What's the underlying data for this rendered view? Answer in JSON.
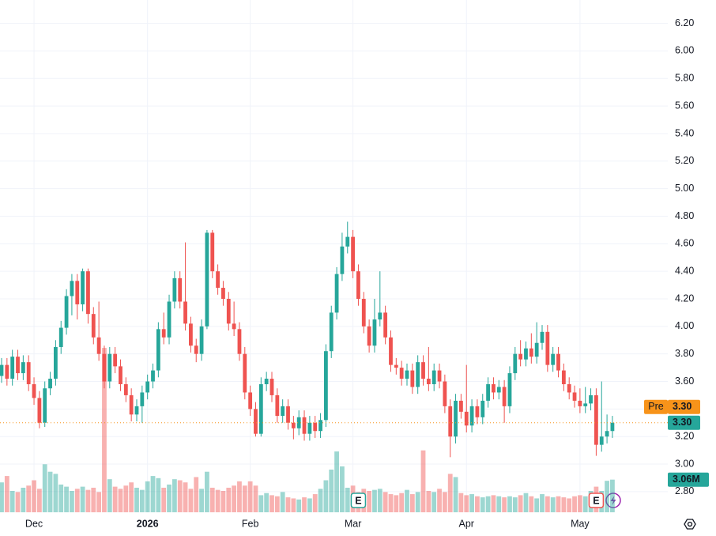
{
  "chart_data": {
    "type": "candlestick",
    "categories": [
      null,
      null,
      null,
      null,
      null,
      null,
      "Dec",
      null,
      null,
      null,
      null,
      null,
      null,
      null,
      null,
      null,
      null,
      null,
      null,
      null,
      null,
      null,
      null,
      null,
      null,
      null,
      null,
      "2026",
      null,
      null,
      null,
      null,
      null,
      null,
      null,
      null,
      null,
      null,
      null,
      null,
      null,
      null,
      null,
      null,
      null,
      null,
      "Feb",
      null,
      null,
      null,
      null,
      null,
      null,
      null,
      null,
      null,
      null,
      null,
      null,
      null,
      null,
      null,
      null,
      null,
      null,
      "Mar",
      null,
      null,
      null,
      null,
      null,
      null,
      null,
      null,
      null,
      null,
      null,
      null,
      null,
      null,
      null,
      null,
      null,
      null,
      null,
      null,
      "Apr",
      null,
      null,
      null,
      null,
      null,
      null,
      null,
      null,
      null,
      null,
      null,
      null,
      null,
      null,
      null,
      null,
      null,
      null,
      null,
      null,
      "May",
      null,
      null,
      null,
      null,
      null,
      null
    ],
    "open": [
      3.64,
      3.72,
      3.62,
      3.78,
      3.66,
      3.74,
      3.58,
      3.48,
      3.3,
      3.55,
      3.62,
      3.85,
      3.99,
      4.22,
      4.33,
      4.16,
      4.4,
      4.09,
      3.92,
      3.8,
      3.6,
      3.8,
      3.71,
      3.58,
      3.5,
      3.36,
      3.42,
      3.52,
      3.6,
      3.68,
      3.98,
      3.92,
      4.18,
      4.35,
      4.18,
      4.02,
      3.86,
      3.8,
      4.0,
      4.68,
      4.4,
      4.28,
      4.2,
      4.02,
      3.98,
      3.8,
      3.52,
      3.4,
      3.22,
      3.58,
      3.62,
      3.5,
      3.35,
      3.42,
      3.3,
      3.26,
      3.34,
      3.22,
      3.3,
      3.24,
      3.32,
      3.82,
      4.1,
      4.38,
      4.58,
      4.65,
      4.4,
      4.2,
      4.0,
      3.86,
      4.05,
      4.1,
      3.92,
      3.72,
      3.7,
      3.62,
      3.68,
      3.56,
      3.74,
      3.62,
      3.58,
      3.68,
      3.6,
      3.42,
      3.2,
      3.46,
      3.38,
      3.28,
      3.42,
      3.34,
      3.46,
      3.58,
      3.52,
      3.56,
      3.42,
      3.66,
      3.8,
      3.76,
      3.84,
      3.78,
      3.88,
      3.96,
      3.72,
      3.8,
      3.68,
      3.58,
      3.52,
      3.46,
      3.42,
      3.44,
      3.5,
      3.14,
      3.2,
      3.24
    ],
    "high": [
      3.77,
      3.77,
      3.83,
      3.83,
      3.79,
      3.79,
      3.63,
      3.53,
      3.6,
      3.67,
      3.9,
      4.04,
      4.27,
      4.38,
      4.38,
      4.42,
      4.42,
      4.14,
      4.18,
      3.86,
      3.85,
      3.85,
      3.76,
      3.63,
      3.55,
      3.47,
      3.57,
      3.65,
      3.73,
      4.03,
      4.1,
      4.23,
      4.4,
      4.4,
      4.61,
      4.07,
      3.91,
      4.05,
      4.7,
      4.7,
      4.45,
      4.33,
      4.25,
      4.18,
      4.03,
      3.85,
      3.57,
      3.45,
      3.63,
      3.67,
      3.67,
      3.55,
      3.47,
      3.47,
      3.35,
      3.39,
      3.39,
      3.35,
      3.35,
      3.37,
      3.87,
      4.15,
      4.43,
      4.68,
      4.76,
      4.7,
      4.45,
      4.25,
      4.05,
      4.2,
      4.4,
      4.15,
      3.97,
      3.77,
      3.75,
      3.73,
      3.73,
      3.79,
      3.79,
      3.85,
      3.73,
      3.73,
      3.65,
      3.47,
      3.51,
      3.51,
      3.72,
      3.47,
      3.47,
      3.51,
      3.63,
      3.63,
      3.61,
      3.61,
      3.71,
      3.85,
      3.9,
      3.89,
      3.95,
      4.03,
      4.01,
      4.01,
      3.85,
      3.85,
      3.73,
      3.63,
      3.57,
      3.55,
      3.56,
      3.55,
      3.55,
      3.6,
      3.36,
      3.35
    ],
    "low": [
      3.59,
      3.57,
      3.57,
      3.61,
      3.61,
      3.53,
      3.43,
      3.26,
      3.27,
      3.5,
      3.57,
      3.8,
      3.94,
      4.08,
      4.05,
      4.11,
      4.02,
      3.87,
      3.75,
      3.55,
      3.55,
      3.66,
      3.53,
      3.45,
      3.31,
      3.31,
      3.3,
      3.47,
      3.55,
      3.63,
      3.87,
      3.87,
      4.13,
      4.13,
      3.97,
      3.81,
      3.74,
      3.75,
      3.98,
      4.35,
      4.23,
      4.15,
      3.97,
      3.93,
      3.75,
      3.47,
      3.35,
      3.2,
      3.2,
      3.53,
      3.45,
      3.3,
      3.3,
      3.25,
      3.18,
      3.21,
      3.17,
      3.17,
      3.19,
      3.19,
      3.27,
      3.77,
      4.05,
      4.33,
      4.53,
      4.35,
      4.15,
      3.95,
      3.81,
      3.81,
      4.0,
      3.87,
      3.67,
      3.65,
      3.57,
      3.57,
      3.51,
      3.51,
      3.57,
      3.53,
      3.53,
      3.55,
      3.37,
      3.05,
      3.15,
      3.33,
      3.23,
      3.23,
      3.29,
      3.29,
      3.41,
      3.47,
      3.47,
      3.3,
      3.37,
      3.61,
      3.71,
      3.71,
      3.73,
      3.73,
      3.83,
      3.67,
      3.67,
      3.63,
      3.53,
      3.47,
      3.41,
      3.37,
      3.37,
      3.39,
      3.06,
      3.09,
      3.15,
      3.19
    ],
    "close": [
      3.72,
      3.62,
      3.78,
      3.66,
      3.74,
      3.58,
      3.48,
      3.3,
      3.55,
      3.62,
      3.85,
      3.99,
      4.22,
      4.33,
      4.16,
      4.4,
      4.09,
      3.92,
      3.8,
      3.6,
      3.8,
      3.71,
      3.58,
      3.5,
      3.36,
      3.42,
      3.52,
      3.6,
      3.68,
      3.98,
      3.92,
      4.18,
      4.35,
      4.18,
      4.02,
      3.86,
      3.8,
      4.0,
      4.68,
      4.4,
      4.28,
      4.2,
      4.02,
      3.98,
      3.8,
      3.52,
      3.4,
      3.22,
      3.58,
      3.62,
      3.5,
      3.35,
      3.42,
      3.3,
      3.26,
      3.34,
      3.22,
      3.3,
      3.24,
      3.32,
      3.82,
      4.1,
      4.38,
      4.58,
      4.65,
      4.4,
      4.2,
      4.0,
      3.86,
      4.05,
      4.1,
      3.92,
      3.72,
      3.7,
      3.62,
      3.68,
      3.56,
      3.74,
      3.62,
      3.58,
      3.68,
      3.6,
      3.42,
      3.2,
      3.46,
      3.38,
      3.28,
      3.42,
      3.34,
      3.46,
      3.58,
      3.52,
      3.56,
      3.42,
      3.66,
      3.8,
      3.76,
      3.84,
      3.78,
      3.88,
      3.96,
      3.72,
      3.8,
      3.68,
      3.58,
      3.52,
      3.46,
      3.42,
      3.44,
      3.5,
      3.14,
      3.2,
      3.24,
      3.3
    ],
    "volume": [
      2.8,
      3.4,
      2.0,
      1.9,
      2.3,
      2.5,
      3.0,
      2.2,
      4.5,
      3.8,
      3.6,
      2.6,
      2.4,
      2.0,
      2.2,
      2.4,
      2.1,
      2.3,
      1.9,
      15.4,
      3.1,
      2.4,
      2.2,
      2.5,
      2.8,
      2.3,
      2.1,
      2.9,
      3.4,
      3.2,
      2.3,
      2.6,
      3.1,
      3.0,
      2.8,
      2.2,
      3.3,
      2.2,
      3.8,
      2.3,
      2.1,
      2.0,
      2.3,
      2.5,
      2.9,
      2.5,
      2.9,
      2.5,
      1.6,
      1.8,
      1.6,
      1.5,
      1.9,
      1.4,
      1.3,
      1.2,
      1.4,
      1.3,
      1.7,
      2.2,
      3.0,
      4.0,
      5.7,
      4.3,
      2.3,
      2.5,
      1.9,
      2.2,
      2.0,
      2.1,
      2.2,
      1.9,
      1.7,
      1.6,
      1.8,
      2.1,
      1.7,
      1.9,
      5.8,
      2.0,
      1.9,
      2.2,
      1.9,
      3.6,
      3.3,
      1.8,
      1.6,
      1.7,
      1.5,
      1.4,
      1.5,
      1.6,
      1.5,
      1.4,
      1.5,
      1.4,
      1.6,
      1.8,
      1.5,
      1.3,
      1.7,
      1.5,
      1.4,
      1.5,
      1.4,
      1.3,
      1.5,
      1.6,
      1.5,
      2.0,
      2.4,
      2.0,
      2.95,
      3.06
    ],
    "up_color": "#26a69a",
    "down_color": "#ef5350",
    "ylim": [
      2.65,
      6.37
    ],
    "yticks": [
      {
        "value": 2.8,
        "label": "2.80"
      },
      {
        "value": 3.0,
        "label": "3.00"
      },
      {
        "value": 3.2,
        "label": "3.20"
      },
      {
        "value": 3.4,
        "label": "3.40"
      },
      {
        "value": 3.6,
        "label": "3.60"
      },
      {
        "value": 3.8,
        "label": "3.80"
      },
      {
        "value": 4.0,
        "label": "4.00"
      },
      {
        "value": 4.2,
        "label": "4.20"
      },
      {
        "value": 4.4,
        "label": "4.40"
      },
      {
        "value": 4.6,
        "label": "4.60"
      },
      {
        "value": 4.8,
        "label": "4.80"
      },
      {
        "value": 5.0,
        "label": "5.00"
      },
      {
        "value": 5.2,
        "label": "5.20"
      },
      {
        "value": 5.4,
        "label": "5.40"
      },
      {
        "value": 5.6,
        "label": "5.60"
      },
      {
        "value": 5.8,
        "label": "5.80"
      },
      {
        "value": 6.0,
        "label": "6.00"
      },
      {
        "value": 6.2,
        "label": "6.20"
      }
    ],
    "y2lim": [
      0,
      48
    ],
    "grid": true,
    "price_markers": [
      {
        "name": "Pre",
        "value": 3.3,
        "label": "3.30",
        "color": "#f7931a"
      },
      {
        "value": 3.3,
        "label": "3.30",
        "color": "#26a69a"
      }
    ],
    "volume_marker": {
      "value": 3.06,
      "label": "3.06M",
      "color": "#26a69a"
    },
    "events": [
      {
        "label": "E",
        "index": 66,
        "color": "#26a69a"
      },
      {
        "label": "E",
        "index": 110,
        "color": "#ef5350"
      }
    ]
  }
}
